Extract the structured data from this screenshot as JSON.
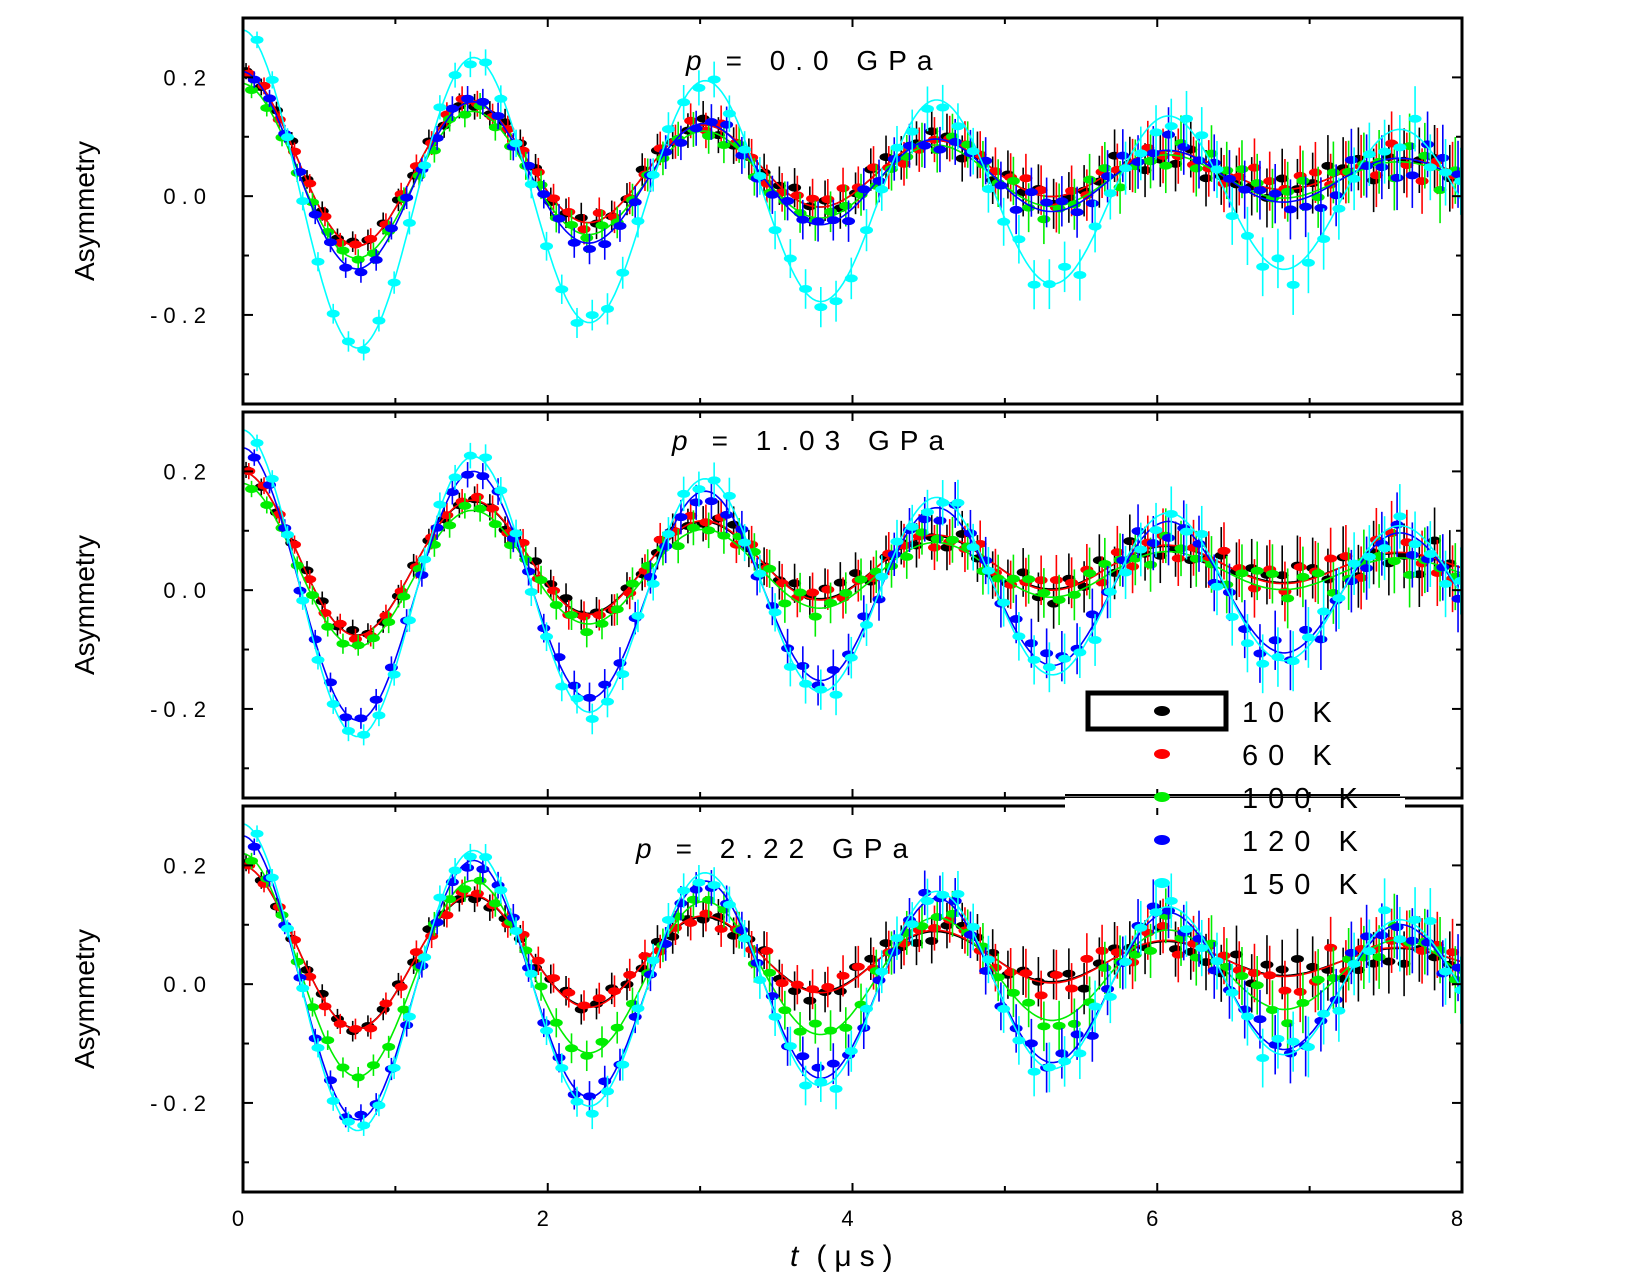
{
  "chart_data": {
    "type": "line",
    "xlabel_var": "t",
    "xlabel_unit": "(μs)",
    "ylabel": "Asymmetry",
    "xlim": [
      0,
      8
    ],
    "x_ticks": [
      "0",
      "2",
      "4",
      "6",
      "8"
    ],
    "ylim": [
      -0.35,
      0.3
    ],
    "y_ticks": [
      "0.2",
      "0.0",
      "-0.2"
    ],
    "oscillation_period_us": 1.52,
    "legend": [
      {
        "label": "10 K",
        "color": "#000000"
      },
      {
        "label": "60 K",
        "color": "#ff0000"
      },
      {
        "label": "100 K",
        "color": "#00ee00"
      },
      {
        "label": "120 K",
        "color": "#0000ff"
      },
      {
        "label": "150 K",
        "color": "#00ffff"
      }
    ],
    "panels": [
      {
        "title_var": "p",
        "title_rest": "= 0.0 GPa",
        "series": [
          {
            "name": "10 K",
            "amplitude": 0.16,
            "offset": 0.03,
            "decay_rate": 0.25
          },
          {
            "name": "60 K",
            "amplitude": 0.16,
            "offset": 0.03,
            "decay_rate": 0.25
          },
          {
            "name": "100 K",
            "amplitude": 0.16,
            "offset": 0.03,
            "decay_rate": 0.23
          },
          {
            "name": "120 K",
            "amplitude": 0.18,
            "offset": 0.03,
            "decay_rate": 0.22
          },
          {
            "name": "150 K",
            "amplitude": 0.28,
            "offset": 0.0,
            "decay_rate": 0.12
          }
        ]
      },
      {
        "title_var": "p",
        "title_rest": "= 1.03 GPa",
        "series": [
          {
            "name": "10 K",
            "amplitude": 0.15,
            "offset": 0.03,
            "decay_rate": 0.25
          },
          {
            "name": "60 K",
            "amplitude": 0.15,
            "offset": 0.03,
            "decay_rate": 0.24
          },
          {
            "name": "100 K",
            "amplitude": 0.15,
            "offset": 0.03,
            "decay_rate": 0.24
          },
          {
            "name": "120 K",
            "amplitude": 0.24,
            "offset": 0.0,
            "decay_rate": 0.12
          },
          {
            "name": "150 K",
            "amplitude": 0.27,
            "offset": 0.0,
            "decay_rate": 0.12
          }
        ]
      },
      {
        "title_var": "p",
        "title_rest": "= 2.22 GPa",
        "series": [
          {
            "name": "10 K",
            "amplitude": 0.15,
            "offset": 0.03,
            "decay_rate": 0.26
          },
          {
            "name": "60 K",
            "amplitude": 0.15,
            "offset": 0.03,
            "decay_rate": 0.25
          },
          {
            "name": "100 K",
            "amplitude": 0.2,
            "offset": 0.02,
            "decay_rate": 0.17
          },
          {
            "name": "120 K",
            "amplitude": 0.25,
            "offset": 0.0,
            "decay_rate": 0.12
          },
          {
            "name": "150 K",
            "amplitude": 0.27,
            "offset": 0.0,
            "decay_rate": 0.12
          }
        ]
      }
    ]
  }
}
